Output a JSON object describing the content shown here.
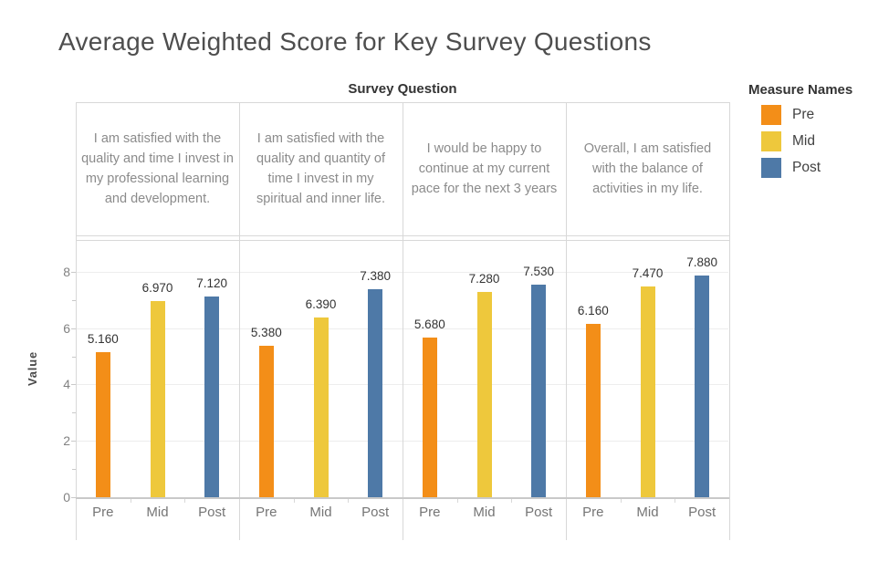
{
  "chart_data": {
    "type": "bar",
    "title": "Average Weighted Score for Key Survey Questions",
    "column_field_label": "Survey Question",
    "legend_title": "Measure Names",
    "legend_position": "top-right",
    "ylabel": "Value",
    "ylim": [
      0,
      9.13
    ],
    "yticks": [
      0,
      2,
      4,
      6,
      8
    ],
    "grid": "horizontal gridlines at ticks 2,4,6,8",
    "categories": [
      "I am satisfied with the quality and time I invest in my professional learning and development.",
      "I am satisfied with the quality and quantity of time I invest in my spiritual and inner life.",
      "I would be happy to continue at my current pace for the next 3 years",
      "Overall, I am satisfied with the balance of activities in my life."
    ],
    "x_tick_labels": [
      "Pre",
      "Mid",
      "Post"
    ],
    "series": [
      {
        "name": "Pre",
        "color": "#F38E18",
        "values": [
          5.16,
          5.38,
          5.68,
          6.16
        ],
        "labels": [
          "5.160",
          "5.380",
          "5.680",
          "6.160"
        ]
      },
      {
        "name": "Mid",
        "color": "#EEC83C",
        "values": [
          6.97,
          6.39,
          7.28,
          7.47
        ],
        "labels": [
          "6.970",
          "6.390",
          "7.280",
          "7.470"
        ]
      },
      {
        "name": "Post",
        "color": "#4E79A7",
        "values": [
          7.12,
          7.38,
          7.53,
          7.88
        ],
        "labels": [
          "7.120",
          "7.380",
          "7.530",
          "7.880"
        ]
      }
    ]
  }
}
